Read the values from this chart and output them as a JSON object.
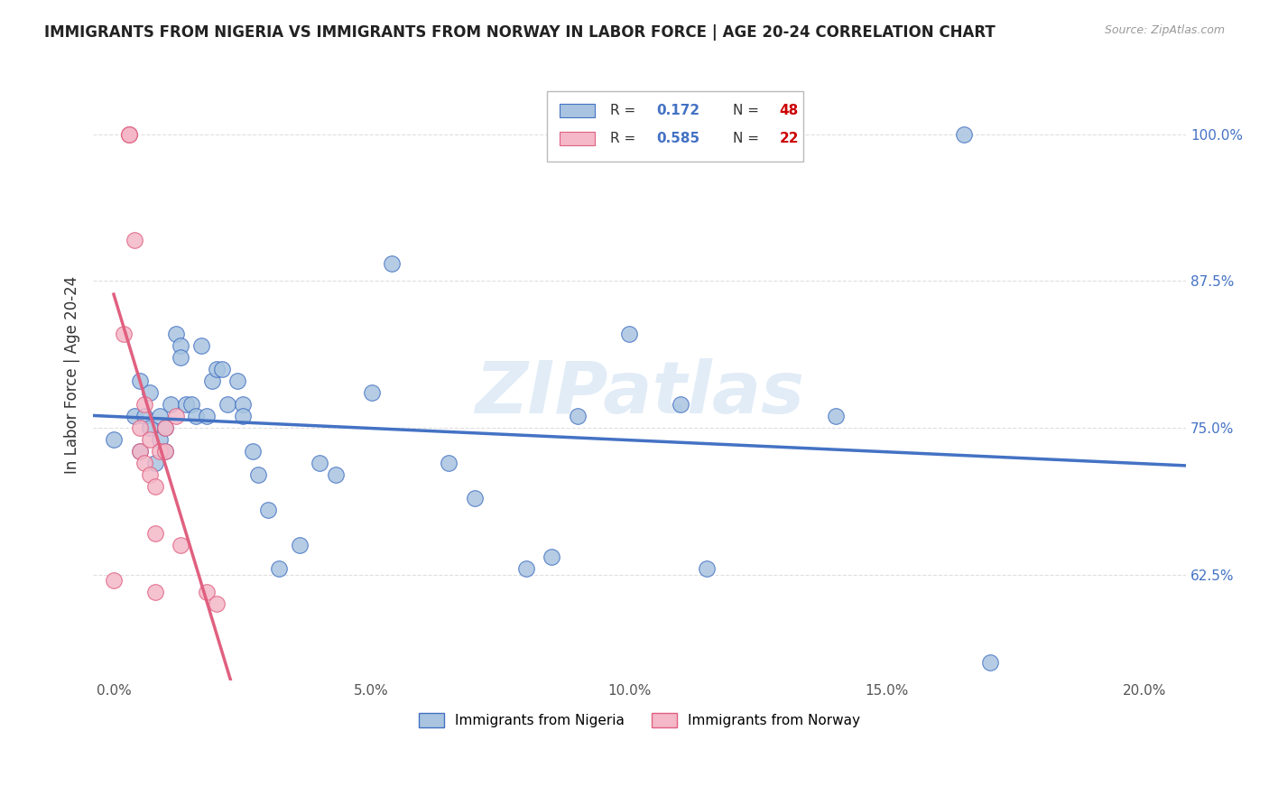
{
  "title": "IMMIGRANTS FROM NIGERIA VS IMMIGRANTS FROM NORWAY IN LABOR FORCE | AGE 20-24 CORRELATION CHART",
  "source": "Source: ZipAtlas.com",
  "xlabel_ticks": [
    "0.0%",
    "5.0%",
    "10.0%",
    "15.0%",
    "20.0%"
  ],
  "xlabel_tick_vals": [
    0.0,
    0.05,
    0.1,
    0.15,
    0.2
  ],
  "ylabel_ticks": [
    "62.5%",
    "75.0%",
    "87.5%",
    "100.0%"
  ],
  "ylabel_tick_vals": [
    0.625,
    0.75,
    0.875,
    1.0
  ],
  "ylabel_label": "In Labor Force | Age 20-24",
  "xlim": [
    -0.004,
    0.208
  ],
  "ylim": [
    0.535,
    1.055
  ],
  "nigeria_R": 0.172,
  "nigeria_N": 48,
  "norway_R": 0.585,
  "norway_N": 22,
  "nigeria_color": "#a8c4e0",
  "norway_color": "#f4b8c8",
  "nigeria_line_color": "#4472c4",
  "norway_line_color": "#e06080",
  "legend_nigeria_label": "Immigrants from Nigeria",
  "legend_norway_label": "Immigrants from Norway",
  "R_color": "#4472c4",
  "N_color": "#cc0000",
  "nigeria_x": [
    0.0,
    0.004,
    0.005,
    0.005,
    0.006,
    0.007,
    0.007,
    0.008,
    0.009,
    0.009,
    0.01,
    0.01,
    0.011,
    0.012,
    0.013,
    0.013,
    0.014,
    0.015,
    0.016,
    0.017,
    0.018,
    0.019,
    0.02,
    0.021,
    0.022,
    0.024,
    0.025,
    0.025,
    0.027,
    0.028,
    0.03,
    0.032,
    0.036,
    0.04,
    0.043,
    0.05,
    0.054,
    0.065,
    0.07,
    0.08,
    0.085,
    0.09,
    0.1,
    0.11,
    0.115,
    0.14,
    0.165,
    0.17
  ],
  "nigeria_y": [
    0.74,
    0.76,
    0.73,
    0.79,
    0.76,
    0.75,
    0.78,
    0.72,
    0.74,
    0.76,
    0.73,
    0.75,
    0.77,
    0.83,
    0.82,
    0.81,
    0.77,
    0.77,
    0.76,
    0.82,
    0.76,
    0.79,
    0.8,
    0.8,
    0.77,
    0.79,
    0.77,
    0.76,
    0.73,
    0.71,
    0.68,
    0.63,
    0.65,
    0.72,
    0.71,
    0.78,
    0.89,
    0.72,
    0.69,
    0.63,
    0.64,
    0.76,
    0.83,
    0.77,
    0.63,
    0.76,
    1.0,
    0.55
  ],
  "norway_x": [
    0.0,
    0.002,
    0.003,
    0.003,
    0.003,
    0.004,
    0.005,
    0.005,
    0.006,
    0.006,
    0.007,
    0.007,
    0.008,
    0.008,
    0.008,
    0.009,
    0.01,
    0.01,
    0.012,
    0.013,
    0.018,
    0.02
  ],
  "norway_y": [
    0.62,
    0.83,
    1.0,
    1.0,
    1.0,
    0.91,
    0.75,
    0.73,
    0.77,
    0.72,
    0.74,
    0.71,
    0.7,
    0.66,
    0.61,
    0.73,
    0.75,
    0.73,
    0.76,
    0.65,
    0.61,
    0.6
  ],
  "watermark": "ZIPatlas",
  "background_color": "#ffffff",
  "grid_color": "#d8d8d8"
}
